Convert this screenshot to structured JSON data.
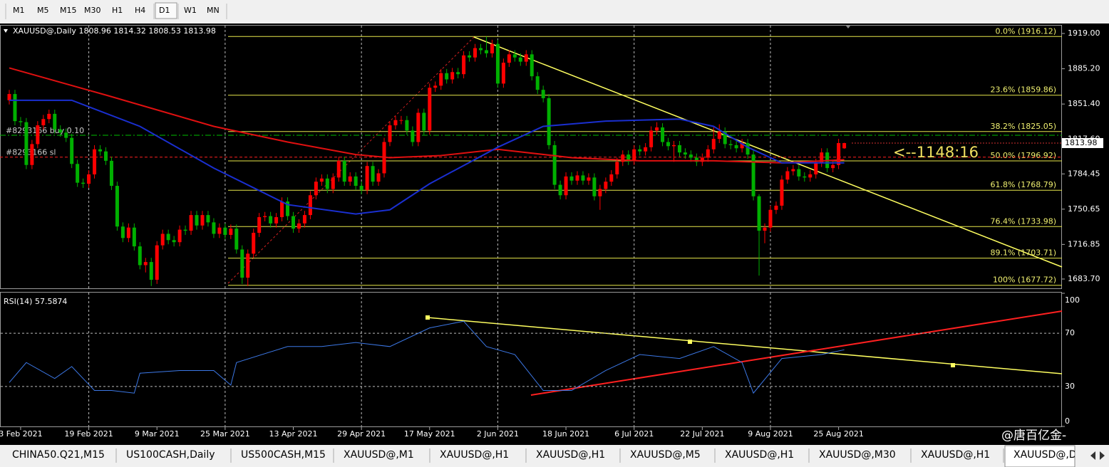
{
  "toolbar": {
    "timeframes": [
      "M1",
      "M5",
      "M15",
      "M30",
      "H1",
      "H4",
      "D1",
      "W1",
      "MN"
    ]
  },
  "tabs": [
    "CHINA50.Q21,M15",
    "US100CASH,Daily",
    "US500CASH,M15",
    "XAUUSD@,M1",
    "XAUUSD@,H1",
    "XAUUSD@,H1",
    "XAUUSD@,M5",
    "XAUUSD@,H1",
    "XAUUSD@,M30",
    "XAUUSD@,H1",
    "XAUUSD@,Daily"
  ],
  "watermark": "@唐百亿金-",
  "chart_data": [
    {
      "type": "candlestick",
      "title": "XAUUSD@,Daily  1808.96 1814.32 1808.53 1813.98",
      "up_color": "#ff0000",
      "down_color": "#00b000",
      "categories": [
        null,
        null,
        "3 Feb 2021",
        null,
        null,
        null,
        null,
        null,
        null,
        null,
        null,
        null,
        null,
        null,
        "19 Feb 2021",
        null,
        null,
        null,
        null,
        null,
        null,
        null,
        null,
        null,
        null,
        null,
        "9 Mar 2021",
        null,
        null,
        null,
        null,
        null,
        null,
        null,
        null,
        null,
        null,
        null,
        "25 Mar 2021",
        null,
        null,
        null,
        null,
        null,
        null,
        null,
        null,
        null,
        null,
        null,
        "13 Apr 2021",
        null,
        null,
        null,
        null,
        null,
        null,
        null,
        null,
        null,
        null,
        null,
        "29 Apr 2021",
        null,
        null,
        null,
        null,
        null,
        null,
        null,
        null,
        null,
        null,
        null,
        "17 May 2021",
        null,
        null,
        null,
        null,
        null,
        null,
        null,
        null,
        null,
        null,
        null,
        "2 Jun 2021",
        null,
        null,
        null,
        null,
        null,
        null,
        null,
        null,
        null,
        null,
        null,
        "18 Jun 2021",
        null,
        null,
        null,
        null,
        null,
        null,
        null,
        null,
        null,
        null,
        null,
        "6 Jul 2021",
        null,
        null,
        null,
        null,
        null,
        null,
        null,
        null,
        null,
        null,
        null,
        "22 Jul 2021",
        null,
        null,
        null,
        null,
        null,
        null,
        null,
        null,
        null,
        null,
        null,
        "9 Aug 2021",
        null,
        null,
        null,
        null,
        null,
        null,
        null,
        null,
        null,
        null,
        null,
        "25 Aug 2021",
        null
      ],
      "ohlc": [
        [
          1855,
          1865,
          1851,
          1861
        ],
        [
          1861,
          1865,
          1831,
          1835
        ],
        [
          1835,
          1839,
          1830,
          1834
        ],
        [
          1834,
          1838,
          1789,
          1793
        ],
        [
          1793,
          1817,
          1789,
          1813
        ],
        [
          1813,
          1835,
          1809,
          1831
        ],
        [
          1831,
          1841,
          1827,
          1837
        ],
        [
          1837,
          1846,
          1833,
          1842
        ],
        [
          1842,
          1846,
          1823,
          1827
        ],
        [
          1827,
          1831,
          1820,
          1824
        ],
        [
          1824,
          1828,
          1815,
          1819
        ],
        [
          1819,
          1823,
          1790,
          1794
        ],
        [
          1794,
          1798,
          1772,
          1776
        ],
        [
          1776,
          1780,
          1771,
          1775
        ],
        [
          1775,
          1788,
          1771,
          1784
        ],
        [
          1784,
          1812,
          1780,
          1808
        ],
        [
          1808,
          1812,
          1802,
          1806
        ],
        [
          1806,
          1810,
          1793,
          1797
        ],
        [
          1797,
          1801,
          1769,
          1773
        ],
        [
          1773,
          1777,
          1730,
          1734
        ],
        [
          1734,
          1738,
          1719,
          1723
        ],
        [
          1723,
          1737,
          1719,
          1733
        ],
        [
          1733,
          1737,
          1711,
          1715
        ],
        [
          1715,
          1719,
          1693,
          1697
        ],
        [
          1697,
          1704,
          1690,
          1700
        ],
        [
          1700,
          1704,
          1677,
          1683
        ],
        [
          1683,
          1720,
          1679,
          1716
        ],
        [
          1716,
          1731,
          1712,
          1727
        ],
        [
          1727,
          1731,
          1717,
          1721
        ],
        [
          1721,
          1725,
          1715,
          1719
        ],
        [
          1719,
          1735,
          1715,
          1731
        ],
        [
          1731,
          1735,
          1726,
          1730
        ],
        [
          1730,
          1749,
          1726,
          1745
        ],
        [
          1745,
          1749,
          1731,
          1735
        ],
        [
          1735,
          1749,
          1731,
          1745
        ],
        [
          1745,
          1749,
          1734,
          1738
        ],
        [
          1738,
          1742,
          1723,
          1727
        ],
        [
          1727,
          1737,
          1723,
          1733
        ],
        [
          1733,
          1737,
          1722,
          1726
        ],
        [
          1726,
          1736,
          1722,
          1732
        ],
        [
          1732,
          1736,
          1708,
          1712
        ],
        [
          1712,
          1716,
          1679,
          1685
        ],
        [
          1685,
          1712,
          1677,
          1708
        ],
        [
          1708,
          1732,
          1704,
          1728
        ],
        [
          1728,
          1747,
          1724,
          1743
        ],
        [
          1743,
          1748,
          1739,
          1744
        ],
        [
          1744,
          1748,
          1733,
          1737
        ],
        [
          1737,
          1747,
          1733,
          1743
        ],
        [
          1743,
          1762,
          1739,
          1758
        ],
        [
          1758,
          1762,
          1740,
          1744
        ],
        [
          1744,
          1748,
          1728,
          1732
        ],
        [
          1732,
          1741,
          1728,
          1737
        ],
        [
          1737,
          1749,
          1733,
          1745
        ],
        [
          1745,
          1768,
          1741,
          1764
        ],
        [
          1764,
          1781,
          1760,
          1777
        ],
        [
          1777,
          1784,
          1773,
          1780
        ],
        [
          1780,
          1784,
          1766,
          1770
        ],
        [
          1770,
          1785,
          1766,
          1781
        ],
        [
          1781,
          1801,
          1777,
          1797
        ],
        [
          1797,
          1801,
          1773,
          1777
        ],
        [
          1777,
          1786,
          1773,
          1782
        ],
        [
          1782,
          1786,
          1769,
          1773
        ],
        [
          1773,
          1777,
          1765,
          1769
        ],
        [
          1769,
          1796,
          1765,
          1792
        ],
        [
          1792,
          1796,
          1773,
          1777
        ],
        [
          1777,
          1789,
          1773,
          1785
        ],
        [
          1785,
          1819,
          1781,
          1815
        ],
        [
          1815,
          1835,
          1811,
          1831
        ],
        [
          1831,
          1840,
          1827,
          1836
        ],
        [
          1836,
          1840,
          1832,
          1836
        ],
        [
          1836,
          1840,
          1822,
          1826
        ],
        [
          1826,
          1830,
          1811,
          1815
        ],
        [
          1815,
          1847,
          1811,
          1843
        ],
        [
          1843,
          1847,
          1822,
          1826
        ],
        [
          1826,
          1871,
          1822,
          1867
        ],
        [
          1867,
          1873,
          1863,
          1869
        ],
        [
          1869,
          1885,
          1865,
          1881
        ],
        [
          1881,
          1885,
          1871,
          1875
        ],
        [
          1875,
          1886,
          1871,
          1882
        ],
        [
          1882,
          1886,
          1876,
          1880
        ],
        [
          1880,
          1902,
          1876,
          1898
        ],
        [
          1898,
          1902,
          1892,
          1896
        ],
        [
          1896,
          1909,
          1892,
          1905
        ],
        [
          1905,
          1909,
          1899,
          1903
        ],
        [
          1903,
          1916,
          1896,
          1900
        ],
        [
          1900,
          1913,
          1896,
          1909
        ],
        [
          1909,
          1913,
          1867,
          1871
        ],
        [
          1871,
          1895,
          1867,
          1891
        ],
        [
          1891,
          1903,
          1887,
          1899
        ],
        [
          1899,
          1903,
          1892,
          1896
        ],
        [
          1896,
          1900,
          1888,
          1892
        ],
        [
          1892,
          1903,
          1888,
          1899
        ],
        [
          1899,
          1903,
          1874,
          1878
        ],
        [
          1878,
          1882,
          1861,
          1865
        ],
        [
          1865,
          1869,
          1853,
          1857
        ],
        [
          1857,
          1861,
          1808,
          1812
        ],
        [
          1812,
          1816,
          1770,
          1774
        ],
        [
          1774,
          1778,
          1760,
          1764
        ],
        [
          1764,
          1786,
          1760,
          1782
        ],
        [
          1782,
          1786,
          1774,
          1778
        ],
        [
          1778,
          1787,
          1774,
          1783
        ],
        [
          1783,
          1787,
          1774,
          1778
        ],
        [
          1778,
          1785,
          1774,
          1781
        ],
        [
          1781,
          1785,
          1759,
          1763
        ],
        [
          1763,
          1774,
          1750,
          1770
        ],
        [
          1770,
          1781,
          1766,
          1777
        ],
        [
          1777,
          1788,
          1773,
          1784
        ],
        [
          1784,
          1800,
          1780,
          1796
        ],
        [
          1796,
          1807,
          1792,
          1803
        ],
        [
          1803,
          1807,
          1793,
          1797
        ],
        [
          1797,
          1812,
          1793,
          1808
        ],
        [
          1808,
          1812,
          1802,
          1806
        ],
        [
          1806,
          1814,
          1802,
          1810
        ],
        [
          1810,
          1830,
          1806,
          1826
        ],
        [
          1826,
          1834,
          1822,
          1829
        ],
        [
          1829,
          1833,
          1811,
          1815
        ],
        [
          1815,
          1819,
          1807,
          1811
        ],
        [
          1811,
          1816,
          1796,
          1812
        ],
        [
          1812,
          1816,
          1801,
          1805
        ],
        [
          1805,
          1809,
          1799,
          1803
        ],
        [
          1803,
          1807,
          1796,
          1800
        ],
        [
          1800,
          1804,
          1792,
          1796
        ],
        [
          1796,
          1804,
          1792,
          1800
        ],
        [
          1800,
          1812,
          1796,
          1808
        ],
        [
          1808,
          1830,
          1804,
          1818
        ],
        [
          1818,
          1832,
          1814,
          1825
        ],
        [
          1825,
          1829,
          1809,
          1813
        ],
        [
          1813,
          1817,
          1808,
          1812
        ],
        [
          1812,
          1816,
          1805,
          1809
        ],
        [
          1809,
          1818,
          1805,
          1814
        ],
        [
          1814,
          1818,
          1799,
          1803
        ],
        [
          1803,
          1807,
          1759,
          1763
        ],
        [
          1763,
          1765,
          1687,
          1730
        ],
        [
          1730,
          1737,
          1718,
          1733
        ],
        [
          1733,
          1754,
          1729,
          1750
        ],
        [
          1750,
          1758,
          1746,
          1754
        ],
        [
          1754,
          1783,
          1750,
          1779
        ],
        [
          1779,
          1791,
          1775,
          1787
        ],
        [
          1787,
          1793,
          1783,
          1789
        ],
        [
          1789,
          1793,
          1778,
          1782
        ],
        [
          1782,
          1786,
          1777,
          1781
        ],
        [
          1781,
          1788,
          1777,
          1784
        ],
        [
          1784,
          1799,
          1780,
          1795
        ],
        [
          1795,
          1809,
          1791,
          1805
        ],
        [
          1805,
          1809,
          1786,
          1790
        ],
        [
          1790,
          1797,
          1786,
          1793
        ],
        [
          1793,
          1818,
          1789,
          1814
        ],
        [
          1808.96,
          1814.32,
          1808.53,
          1813.98
        ]
      ],
      "series": [
        {
          "color": "#e01010",
          "x": [
            0,
            17,
            36,
            49,
            61,
            67,
            76,
            86,
            99,
            111,
            124,
            136,
            147
          ],
          "values": [
            1886,
            1860,
            1830,
            1815,
            1803,
            1800,
            1802,
            1808,
            1800,
            1797,
            1797,
            1795,
            1798
          ]
        },
        {
          "color": "#1a2fd0",
          "x": [
            0,
            11,
            23,
            36,
            49,
            61,
            67,
            74,
            86,
            94,
            105,
            118,
            124,
            130,
            136,
            147
          ],
          "values": [
            1855,
            1855,
            1830,
            1790,
            1755,
            1746,
            1750,
            1775,
            1810,
            1830,
            1835,
            1837,
            1830,
            1810,
            1795,
            1795
          ]
        }
      ],
      "fib_levels": [
        {
          "label": "0.0% (1916.12)",
          "value": 1916.12
        },
        {
          "label": "23.6% (1859.86)",
          "value": 1859.86
        },
        {
          "label": "38.2% (1825.05)",
          "value": 1825.05
        },
        {
          "label": "50.0% (1796.92)",
          "value": 1796.92
        },
        {
          "label": "61.8% (1768.79)",
          "value": 1768.79
        },
        {
          "label": "76.4% (1733.98)",
          "value": 1733.98
        },
        {
          "label": "89.1% (1703.71)",
          "value": 1703.71
        },
        {
          "label": "100% (1677.72)",
          "value": 1677.72
        }
      ],
      "orders": [
        {
          "label": "#8293166 buy 0.10",
          "price": 1821.5,
          "color": "#00c000"
        },
        {
          "label": "#8293166 sl",
          "price": 1800.5,
          "color": "#ff2020"
        }
      ],
      "annotation": "<--1148:16",
      "ylim": [
        1674.8,
        1923.8
      ],
      "yticks": [
        {
          "value": 1919,
          "label": "1919.00"
        },
        {
          "value": 1885.2,
          "label": "1885.20"
        },
        {
          "value": 1851.4,
          "label": "1851.40"
        },
        {
          "value": 1817.6,
          "label": "1817.60"
        },
        {
          "value": 1784.45,
          "label": "1784.45"
        },
        {
          "value": 1750.65,
          "label": "1750.65"
        },
        {
          "value": 1716.85,
          "label": "1716.85"
        },
        {
          "value": 1683.7,
          "label": "1683.70"
        }
      ]
    },
    {
      "type": "line",
      "title": "RSI(14) 57.5874",
      "color": "#3c78e6",
      "x": [
        0,
        3,
        8,
        11,
        15,
        18,
        22,
        23,
        30,
        36,
        39,
        40,
        49,
        55,
        61,
        67,
        74,
        80,
        84,
        89,
        94,
        99,
        105,
        111,
        118,
        124,
        129,
        131,
        136,
        143,
        147
      ],
      "values": [
        33,
        48,
        36,
        45,
        27,
        27,
        25,
        40,
        42,
        42,
        31,
        48,
        60,
        60,
        63,
        60,
        74,
        79,
        60,
        54,
        27,
        27,
        42,
        54,
        51,
        60,
        48,
        25,
        51,
        54,
        57.5874
      ],
      "ylim": [
        0,
        100
      ],
      "yticks": [
        100,
        70,
        30,
        0
      ]
    }
  ]
}
